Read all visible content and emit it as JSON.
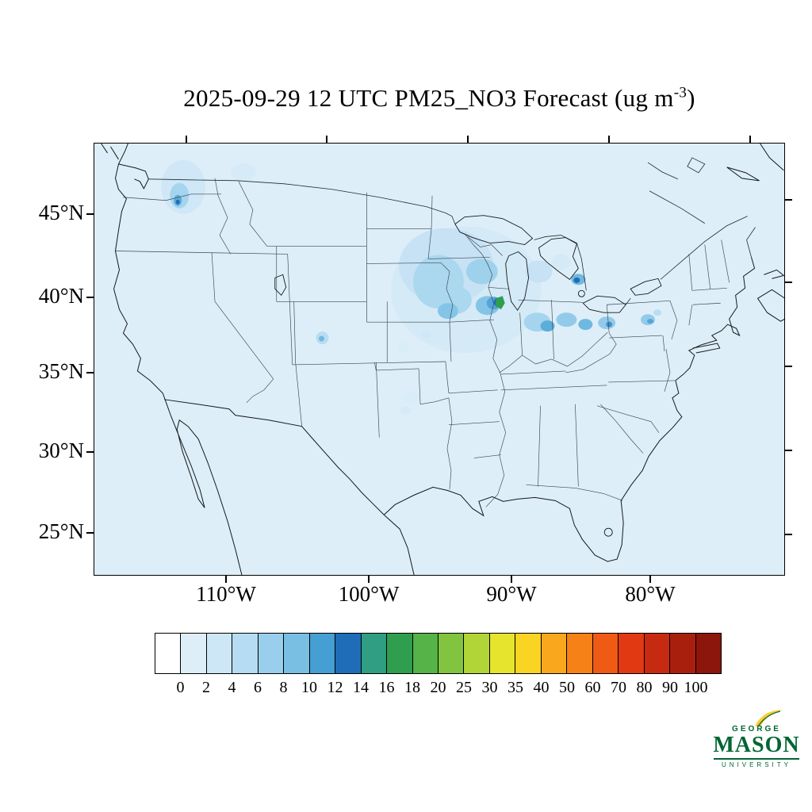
{
  "title": {
    "main": "2025-09-29 12 UTC PM25_NO3 Forecast (ug m",
    "superscript": "-3",
    "suffix": ")"
  },
  "axes": {
    "lat_labels": [
      "45°N",
      "40°N",
      "35°N",
      "30°N",
      "25°N"
    ],
    "lon_labels": [
      "110°W",
      "100°W",
      "90°W",
      "80°W"
    ]
  },
  "colorbar": {
    "tick_labels": [
      "0",
      "2",
      "4",
      "6",
      "8",
      "10",
      "12",
      "14",
      "16",
      "18",
      "20",
      "25",
      "30",
      "35",
      "40",
      "50",
      "60",
      "70",
      "80",
      "90",
      "100"
    ],
    "colors": [
      "#ffffff",
      "#ddeef8",
      "#cde7f6",
      "#b5dcf2",
      "#99cfec",
      "#79bfe3",
      "#469fd3",
      "#1f6cb8",
      "#2f9e82",
      "#2f9e4f",
      "#55b347",
      "#82c43f",
      "#b1d437",
      "#e6e42c",
      "#f9d423",
      "#f9a81d",
      "#f68117",
      "#ef5a14",
      "#e13a12",
      "#c62a10",
      "#a91f0e",
      "#8c150c"
    ]
  },
  "logo": {
    "line1": "GEORGE",
    "line2": "MASON",
    "line3": "UNIVERSITY",
    "green": "#006633",
    "gold": "#ffcc33"
  },
  "chart_data": {
    "type": "heatmap",
    "title": "2025-09-29 12 UTC PM25_NO3 Forecast (ug m-3)",
    "variable": "PM25_NO3",
    "units": "ug m-3",
    "valid_time": "2025-09-29 12 UTC",
    "region": "Continental United States",
    "lon_ticks": [
      "110°W",
      "100°W",
      "90°W",
      "80°W"
    ],
    "lat_ticks": [
      "45°N",
      "40°N",
      "35°N",
      "30°N",
      "25°N"
    ],
    "levels": [
      0,
      2,
      4,
      6,
      8,
      10,
      12,
      14,
      16,
      18,
      20,
      25,
      30,
      35,
      40,
      50,
      60,
      70,
      80,
      90,
      100
    ],
    "legend_position": "bottom",
    "grid": false,
    "features": [
      {
        "region": "Most of CONUS and surrounding ocean",
        "value_ug_m3": "0-2"
      },
      {
        "region": "NW Montana / Idaho panhandle",
        "value_ug_m3": "2-8 with isolated 8-12 maximum"
      },
      {
        "region": "Upper Midwest (S Minnesota, Iowa, Wisconsin, N Illinois)",
        "value_ug_m3": "2-10"
      },
      {
        "region": "N Illinois near S Lake Michigan",
        "value_ug_m3": "12-18 small green maximum"
      },
      {
        "region": "Indiana / Ohio valley",
        "value_ug_m3": "2-8"
      },
      {
        "region": "W Pennsylvania (Pittsburgh area)",
        "value_ug_m3": "4-10"
      },
      {
        "region": "NYC / New Jersey area",
        "value_ug_m3": "2-6"
      },
      {
        "region": "W Lake Ontario (Toronto area)",
        "value_ug_m3": "6-12"
      },
      {
        "region": "Central Colorado spot",
        "value_ug_m3": "2-6"
      },
      {
        "region": "Scattered spots Texas / central plains",
        "value_ug_m3": "2-4"
      }
    ]
  }
}
